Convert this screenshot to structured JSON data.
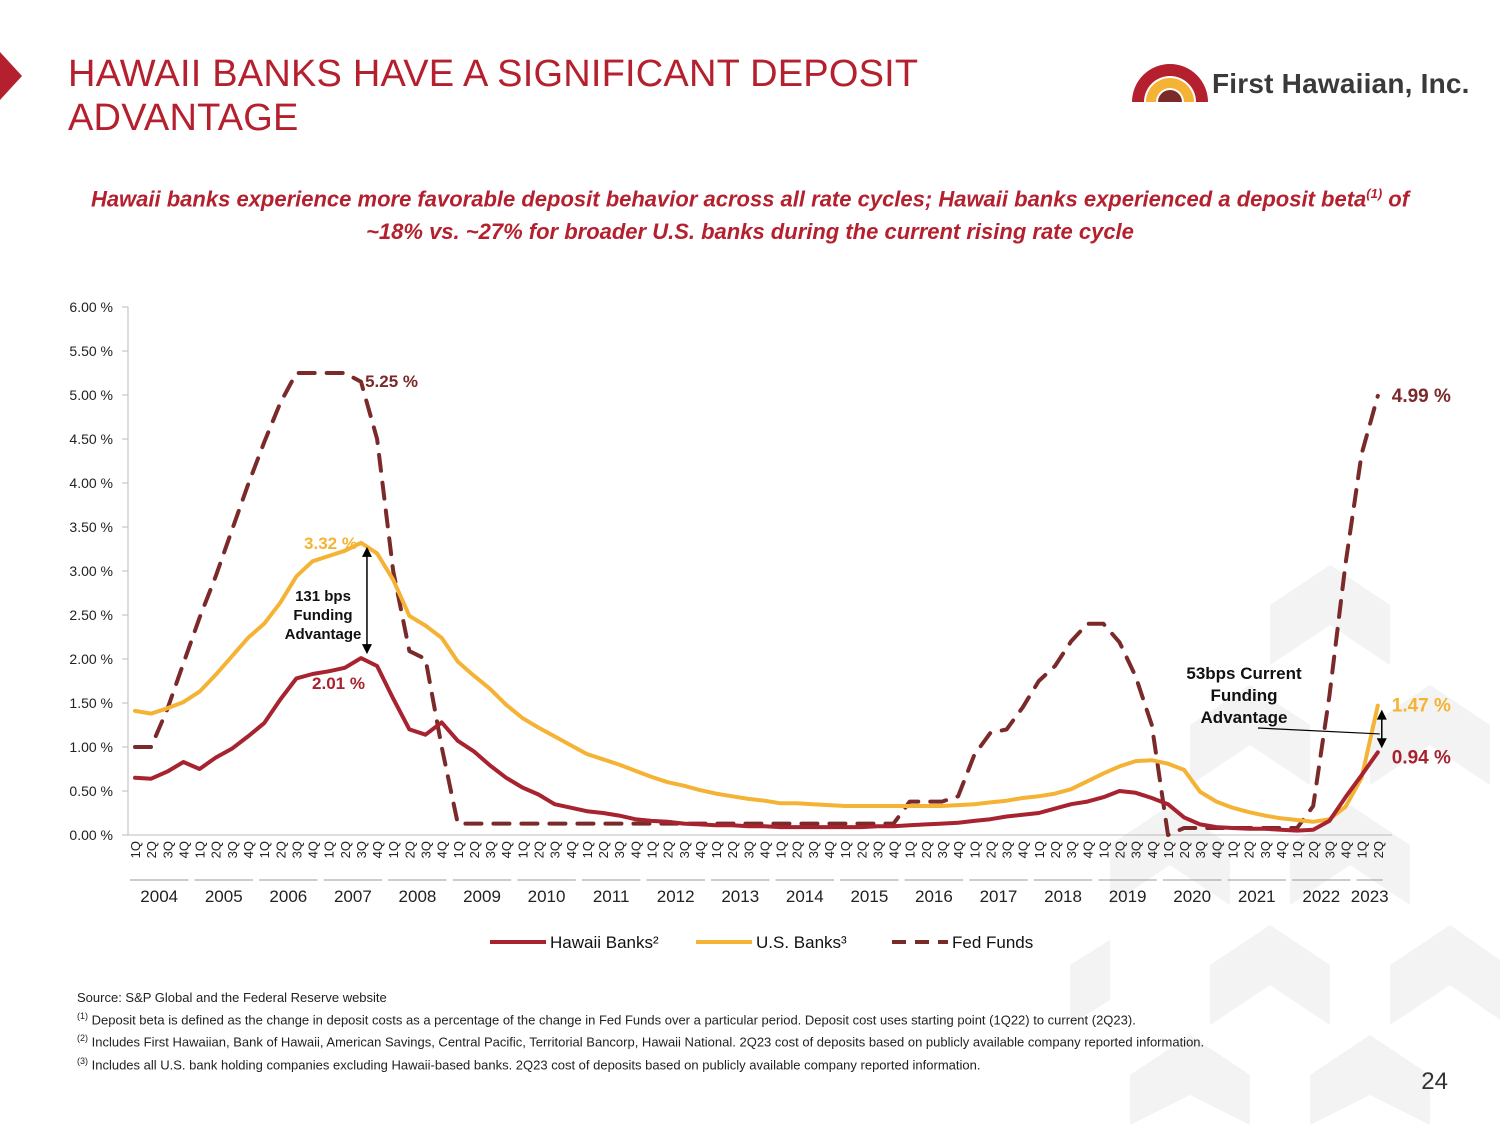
{
  "header": {
    "title": "HAWAII BANKS HAVE A SIGNIFICANT DEPOSIT ADVANTAGE",
    "logo_text": "First Hawaiian, Inc.",
    "subtitle_part1": "Hawaii banks experience more favorable deposit behavior across all rate cycles; Hawaii banks experienced a deposit beta",
    "subtitle_sup": "(1)",
    "subtitle_part2": " of ~18% vs. ~27% for broader U.S. banks during the current rising rate cycle"
  },
  "colors": {
    "brand_red": "#b5202e",
    "hawaii": "#a6232f",
    "us": "#f5b335",
    "fed": "#7b2a2a"
  },
  "chart_data": {
    "type": "line",
    "years": [
      "2004",
      "2005",
      "2006",
      "2007",
      "2008",
      "2009",
      "2010",
      "2011",
      "2012",
      "2013",
      "2014",
      "2015",
      "2016",
      "2017",
      "2018",
      "2019",
      "2020",
      "2021",
      "2022",
      "2023"
    ],
    "quarter_labels": [
      "1Q",
      "2Q",
      "3Q",
      "4Q"
    ],
    "categories_note": "1Q2004 through 2Q2023 (78 quarters)",
    "ylim": [
      0,
      6
    ],
    "yticks": [
      "0.00 %",
      "0.50 %",
      "1.00 %",
      "1.50 %",
      "2.00 %",
      "2.50 %",
      "3.00 %",
      "3.50 %",
      "4.00 %",
      "4.50 %",
      "5.00 %",
      "5.50 %",
      "6.00 %"
    ],
    "ytick_values": [
      0,
      0.5,
      1,
      1.5,
      2,
      2.5,
      3,
      3.5,
      4,
      4.5,
      5,
      5.5,
      6
    ],
    "series": [
      {
        "name": "Hawaii Banks²",
        "style": "solid",
        "values": [
          0.65,
          0.64,
          0.72,
          0.83,
          0.75,
          0.88,
          0.98,
          1.12,
          1.27,
          1.54,
          1.78,
          1.83,
          1.86,
          1.9,
          2.01,
          1.92,
          1.55,
          1.2,
          1.14,
          1.28,
          1.07,
          0.95,
          0.79,
          0.65,
          0.54,
          0.46,
          0.35,
          0.31,
          0.27,
          0.25,
          0.22,
          0.18,
          0.16,
          0.15,
          0.13,
          0.12,
          0.11,
          0.11,
          0.1,
          0.1,
          0.09,
          0.09,
          0.09,
          0.09,
          0.09,
          0.09,
          0.1,
          0.1,
          0.11,
          0.12,
          0.13,
          0.14,
          0.16,
          0.18,
          0.21,
          0.23,
          0.25,
          0.3,
          0.35,
          0.38,
          0.43,
          0.5,
          0.48,
          0.42,
          0.35,
          0.2,
          0.12,
          0.09,
          0.08,
          0.07,
          0.07,
          0.06,
          0.05,
          0.06,
          0.16,
          0.43,
          0.68,
          0.94
        ]
      },
      {
        "name": "U.S. Banks³",
        "style": "solid",
        "values": [
          1.41,
          1.38,
          1.44,
          1.51,
          1.63,
          1.82,
          2.03,
          2.24,
          2.4,
          2.64,
          2.94,
          3.11,
          3.17,
          3.23,
          3.32,
          3.2,
          2.9,
          2.49,
          2.38,
          2.24,
          1.97,
          1.81,
          1.66,
          1.48,
          1.33,
          1.22,
          1.12,
          1.02,
          0.92,
          0.86,
          0.8,
          0.73,
          0.66,
          0.6,
          0.56,
          0.51,
          0.47,
          0.44,
          0.41,
          0.39,
          0.36,
          0.36,
          0.35,
          0.34,
          0.33,
          0.33,
          0.33,
          0.33,
          0.33,
          0.33,
          0.33,
          0.34,
          0.35,
          0.37,
          0.39,
          0.42,
          0.44,
          0.47,
          0.52,
          0.61,
          0.7,
          0.78,
          0.84,
          0.85,
          0.81,
          0.74,
          0.49,
          0.38,
          0.31,
          0.26,
          0.22,
          0.19,
          0.17,
          0.15,
          0.18,
          0.32,
          0.65,
          1.47
        ]
      },
      {
        "name": "Fed Funds",
        "style": "dashed",
        "values": [
          1.0,
          1.0,
          1.43,
          1.95,
          2.47,
          2.94,
          3.46,
          3.98,
          4.46,
          4.91,
          5.25,
          5.25,
          5.25,
          5.25,
          5.15,
          4.5,
          3.0,
          2.09,
          2.0,
          1.0,
          0.13,
          0.13,
          0.13,
          0.13,
          0.13,
          0.13,
          0.13,
          0.13,
          0.13,
          0.13,
          0.13,
          0.13,
          0.13,
          0.13,
          0.13,
          0.13,
          0.13,
          0.13,
          0.13,
          0.13,
          0.13,
          0.13,
          0.13,
          0.13,
          0.13,
          0.13,
          0.13,
          0.13,
          0.38,
          0.38,
          0.38,
          0.44,
          0.91,
          1.16,
          1.2,
          1.45,
          1.75,
          1.92,
          2.2,
          2.4,
          2.4,
          2.19,
          1.8,
          1.25,
          0.0,
          0.08,
          0.08,
          0.08,
          0.08,
          0.08,
          0.08,
          0.08,
          0.08,
          0.33,
          1.58,
          3.08,
          4.33,
          4.99
        ]
      }
    ],
    "end_labels": {
      "fed": "4.99 %",
      "us": "1.47 %",
      "hawaii": "0.94 %"
    },
    "peak_labels": {
      "fed": "5.25 %",
      "us": "3.32 %",
      "hawaii": "2.01 %"
    },
    "annotations": [
      {
        "text": [
          "131 bps",
          "Funding",
          "Advantage"
        ]
      },
      {
        "text": [
          "53bps Current",
          "Funding",
          "Advantage"
        ]
      }
    ],
    "legend": [
      "Hawaii Banks²",
      "U.S. Banks³",
      "Fed Funds"
    ],
    "legend_position": "bottom-center"
  },
  "footnotes": {
    "source": "Source: S&P Global and the Federal Reserve website",
    "fn1_sup": "(1)",
    "fn1": " Deposit beta is defined as the change in deposit costs as a percentage of the change in Fed Funds over a particular period. Deposit cost uses starting point (1Q22) to current (2Q23).",
    "fn2_sup": "(2)",
    "fn2": " Includes First Hawaiian, Bank of Hawaii, American Savings, Central Pacific, Territorial Bancorp, Hawaii National. 2Q23 cost of deposits based on publicly available company reported information.",
    "fn3_sup": "(3)",
    "fn3": " Includes all U.S. bank holding companies excluding Hawaii-based banks. 2Q23 cost of deposits based on publicly available company reported information."
  },
  "page_number": "24"
}
